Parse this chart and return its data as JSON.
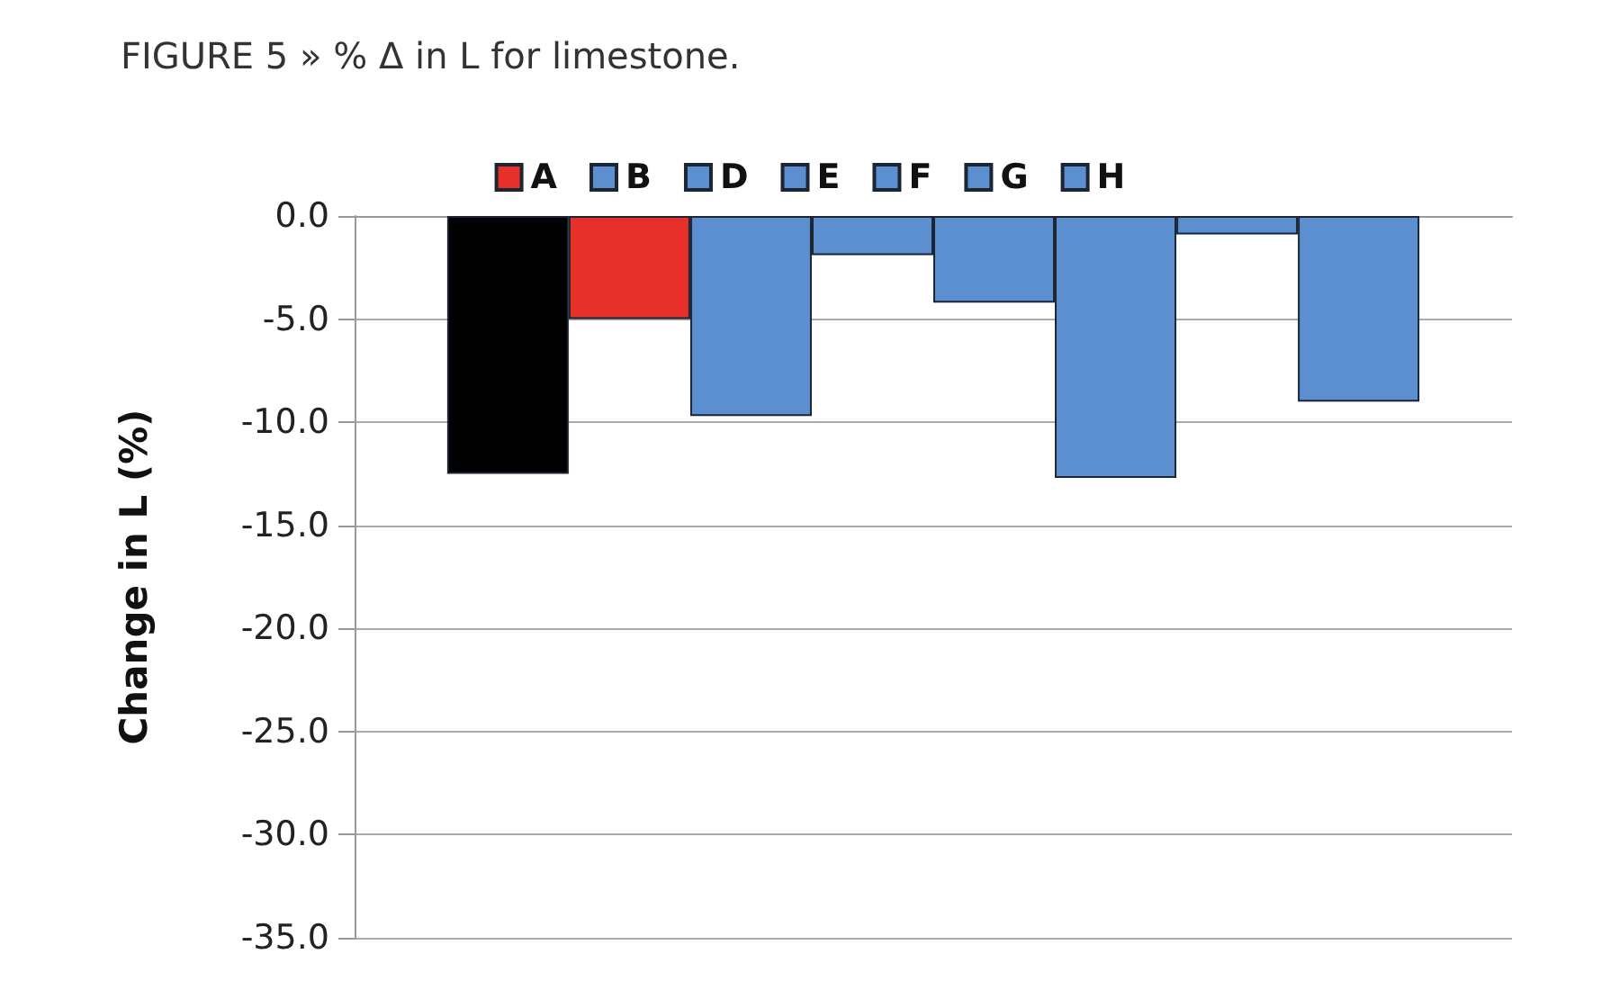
{
  "chart_data": {
    "type": "bar",
    "title": "FIGURE 5 » % Δ in L for limestone.",
    "ylabel": "Change in L (%)",
    "categories": [
      null
    ],
    "series": [
      {
        "color": "#000000",
        "values": [
          -12.5
        ]
      },
      {
        "name": "A",
        "color": "#e8302a",
        "values": [
          -5.0
        ]
      },
      {
        "name": "B",
        "color": "#5b8fd0",
        "values": [
          -9.7
        ]
      },
      {
        "name": "D",
        "color": "#5b8fd0",
        "values": [
          -1.9
        ]
      },
      {
        "name": "E",
        "color": "#5b8fd0",
        "values": [
          -4.2
        ]
      },
      {
        "name": "F",
        "color": "#5b8fd0",
        "values": [
          -12.7
        ]
      },
      {
        "name": "G",
        "color": "#5b8fd0",
        "values": [
          -0.9
        ]
      },
      {
        "name": "H",
        "color": "#5b8fd0",
        "values": [
          -9.0
        ]
      }
    ],
    "ylim": [
      -35,
      0
    ],
    "yticks": [
      {
        "value": 0,
        "label": "0.0"
      },
      {
        "value": -5,
        "label": "-5.0"
      },
      {
        "value": -10,
        "label": "-10.0"
      },
      {
        "value": -15,
        "label": "-15.0"
      },
      {
        "value": -20,
        "label": "-20.0"
      },
      {
        "value": -25,
        "label": "-25.0"
      },
      {
        "value": -30,
        "label": "-30.0"
      },
      {
        "value": -35,
        "label": "-35.0"
      }
    ],
    "grid": "y",
    "legend": "top",
    "tick_labels": "y"
  }
}
